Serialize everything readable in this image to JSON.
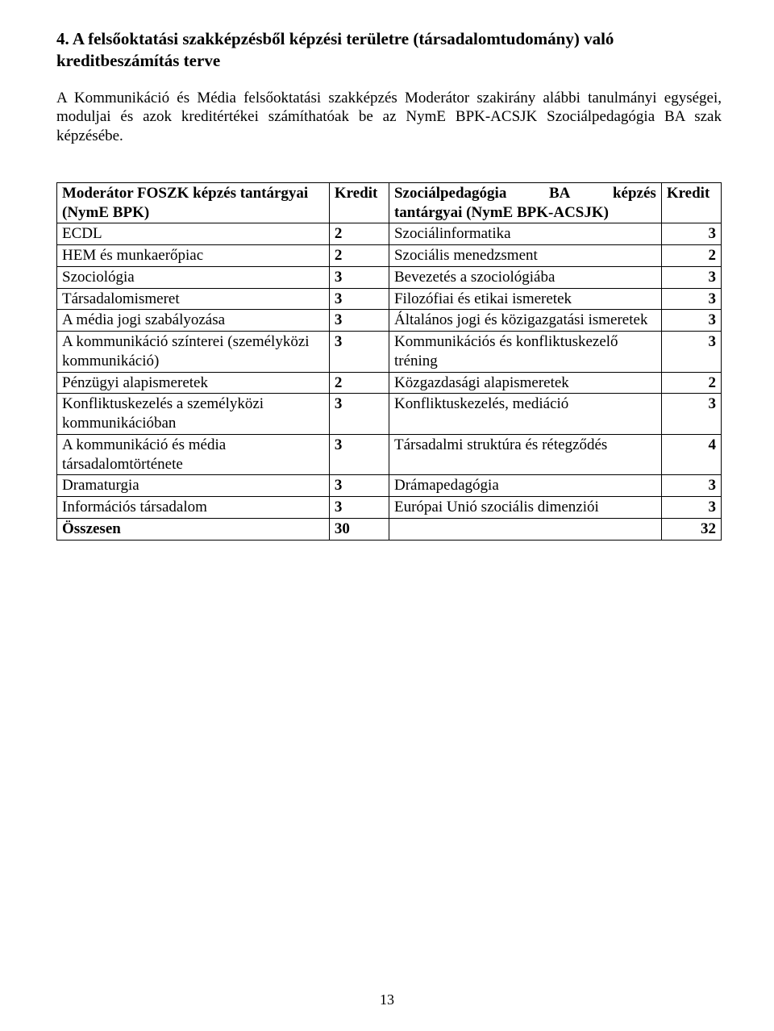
{
  "heading": "4. A felsőoktatási szakképzésből képzési területre (társadalomtudomány) való kreditbeszámítás terve",
  "paragraph": "A Kommunikáció és Média felsőoktatási szakképzés Moderátor szakirány alábbi tanulmányi egységei, moduljai és azok kreditértékei számíthatóak be az NymE BPK-ACSJK Szociálpedagógia BA szak képzésébe.",
  "table": {
    "headers": {
      "col1": "Moderátor FOSZK képzés tantárgyai (NymE BPK)",
      "col2": "Kredit",
      "col3_left": "Szociálpedagógia",
      "col3_mid": "BA",
      "col3_right": "képzés",
      "col3_line2": "tantárgyai (NymE BPK-ACSJK)",
      "col4": "Kredit"
    },
    "rows": [
      {
        "left": "ECDL",
        "left_credit": "2",
        "right": "Szociálinformatika",
        "right_credit": "3"
      },
      {
        "left": "HEM és munkaerőpiac",
        "left_credit": "2",
        "right": "Szociális menedzsment",
        "right_credit": "2"
      },
      {
        "left": "Szociológia",
        "left_credit": "3",
        "right": "Bevezetés a szociológiába",
        "right_credit": "3"
      },
      {
        "left": "Társadalomismeret",
        "left_credit": "3",
        "right": "Filozófiai és etikai ismeretek",
        "right_credit": "3"
      },
      {
        "left": "A média jogi szabályozása",
        "left_credit": "3",
        "right": "Általános jogi és közigazgatási ismeretek",
        "right_credit": "3"
      },
      {
        "left": "A kommunikáció színterei (személyközi kommunikáció)",
        "left_credit": "3",
        "right": "Kommunikációs és konfliktuskezelő tréning",
        "right_credit": "3"
      },
      {
        "left": "Pénzügyi alapismeretek",
        "left_credit": "2",
        "right": "Közgazdasági alapismeretek",
        "right_credit": "2"
      },
      {
        "left": "Konfliktuskezelés a személyközi kommunikációban",
        "left_credit": "3",
        "right": "Konfliktuskezelés, mediáció",
        "right_credit": "3"
      },
      {
        "left": "A kommunikáció és média társadalomtörténete",
        "left_credit": "3",
        "right": "Társadalmi struktúra és rétegződés",
        "right_credit": "4"
      },
      {
        "left": "Dramaturgia",
        "left_credit": "3",
        "right": "Drámapedagógia",
        "right_credit": "3"
      },
      {
        "left": "Információs társadalom",
        "left_credit": "3",
        "right": "Európai Unió szociális dimenziói",
        "right_credit": "3"
      }
    ],
    "total": {
      "label": "Összesen",
      "left_total": "30",
      "right_total": "32"
    }
  },
  "pageNumber": "13",
  "style": {
    "background_color": "#ffffff",
    "text_color": "#000000",
    "border_color": "#000000",
    "font_family": "Times New Roman",
    "heading_fontsize": 21,
    "body_fontsize": 19,
    "table_fontsize": 19,
    "col_widths_percent": [
      41,
      9,
      41,
      9
    ]
  }
}
